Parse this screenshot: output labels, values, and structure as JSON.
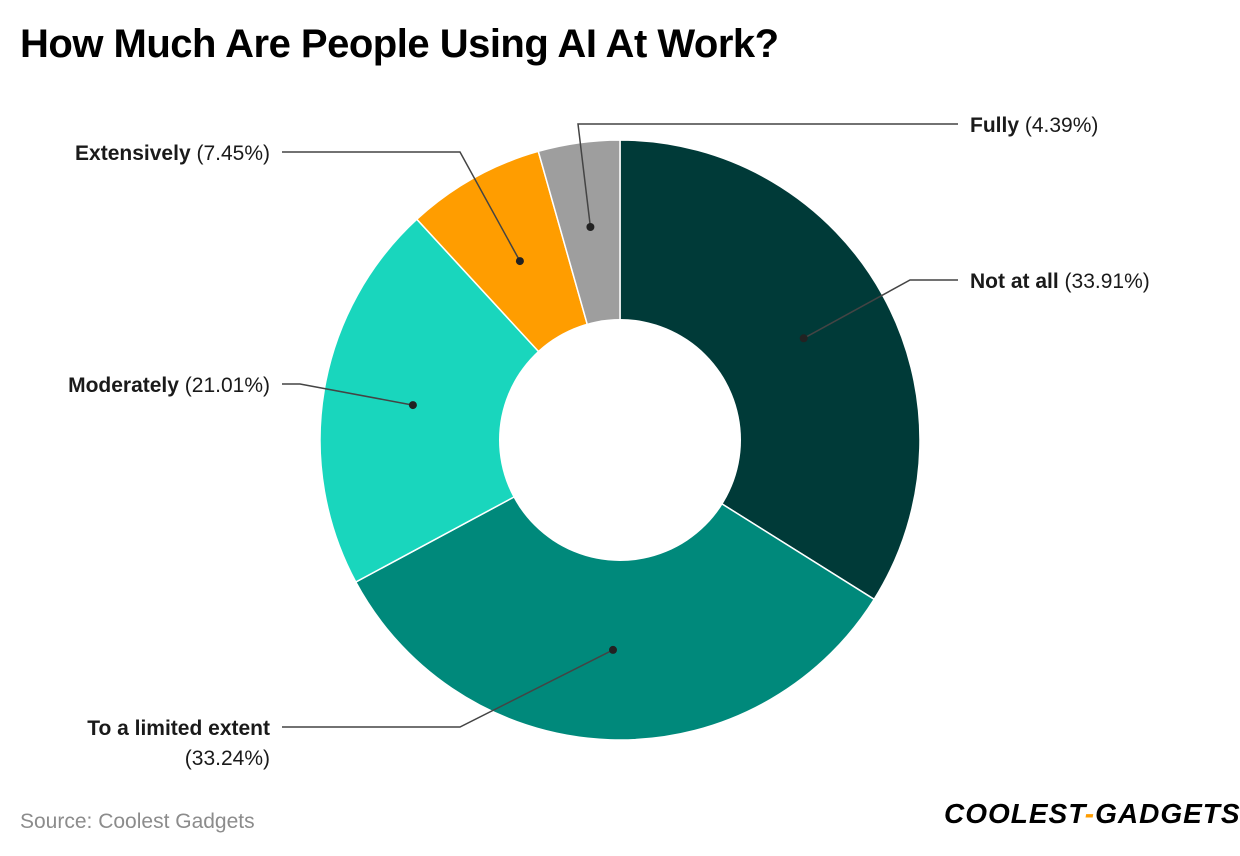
{
  "chart_data": {
    "type": "pie",
    "title": "How Much Are People Using AI At Work?",
    "donut": true,
    "start_angle": "top (12 o'clock), clockwise",
    "slices": [
      {
        "name": "Not at all",
        "value": 33.91,
        "value_label": "(33.91%)",
        "color": "#003a38"
      },
      {
        "name": "To a limited extent",
        "value": 33.24,
        "value_label": "(33.24%)",
        "color": "#00897b"
      },
      {
        "name": "Moderately",
        "value": 21.01,
        "value_label": "(21.01%)",
        "color": "#19d6bd"
      },
      {
        "name": "Extensively",
        "value": 7.45,
        "value_label": "(7.45%)",
        "color": "#ff9d00"
      },
      {
        "name": "Fully",
        "value": 4.39,
        "value_label": "(4.39%)",
        "color": "#9e9e9e"
      }
    ],
    "source": "Source: Coolest Gadgets"
  },
  "brand": {
    "part1": "COOLEST",
    "dash": "-",
    "part2": "GADGETS"
  }
}
